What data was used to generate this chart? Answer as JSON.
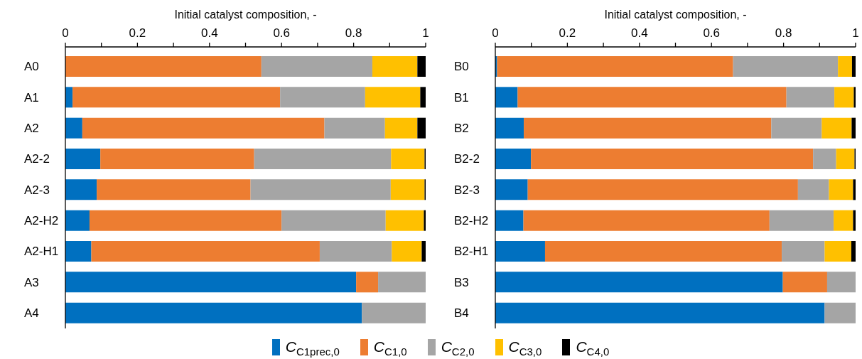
{
  "chart_data": [
    {
      "type": "bar",
      "orientation": "horizontal",
      "stacked": true,
      "xlabel": "Initial catalyst composition, -",
      "categories": [
        "A0",
        "A1",
        "A2",
        "A2-2",
        "A2-3",
        "A2-H2",
        "A2-H1",
        "A3",
        "A4"
      ],
      "xlim": [
        0,
        1
      ],
      "xticks": [
        0,
        {
          "value": 0.1,
          "label": null
        },
        0.2,
        {
          "value": 0.3,
          "label": null
        },
        0.4,
        {
          "value": 0.5,
          "label": null
        },
        0.6,
        {
          "value": 0.7,
          "label": null
        },
        0.8,
        {
          "value": 0.9,
          "label": null
        },
        1
      ],
      "legend": "bottom",
      "series": [
        {
          "name": "C$_{C1prec,0}$",
          "color": "#0070c0",
          "values": [
            0,
            0.02,
            0.047,
            0.097,
            0.087,
            0.067,
            0.072,
            0.807,
            0.823
          ]
        },
        {
          "name": "C$_{C1,0}$",
          "color": "#ed7d31",
          "values": [
            0.544,
            0.576,
            0.672,
            0.427,
            0.427,
            0.533,
            0.634,
            0.061,
            0
          ]
        },
        {
          "name": "C$_{C2,0}$",
          "color": "#a5a5a5",
          "values": [
            0.308,
            0.236,
            0.168,
            0.38,
            0.389,
            0.289,
            0.2,
            0.132,
            0.177
          ]
        },
        {
          "name": "C$_{C3,0}$",
          "color": "#ffc000",
          "values": [
            0.125,
            0.153,
            0.09,
            0.093,
            0.094,
            0.106,
            0.083,
            0,
            0
          ]
        },
        {
          "name": "C$_{C4,0}$",
          "color": "#000000",
          "values": [
            0.023,
            0.015,
            0.023,
            0.003,
            0.003,
            0.005,
            0.011,
            0,
            0
          ]
        }
      ]
    },
    {
      "type": "bar",
      "orientation": "horizontal",
      "stacked": true,
      "xlabel": "Initial catalyst composition, -",
      "categories": [
        "B0",
        "B1",
        "B2",
        "B2-2",
        "B2-3",
        "B2-H2",
        "B2-H1",
        "B3",
        "B4"
      ],
      "xlim": [
        0,
        1
      ],
      "xticks": [
        0,
        {
          "value": 0.1,
          "label": null
        },
        0.2,
        {
          "value": 0.3,
          "label": null
        },
        0.4,
        {
          "value": 0.5,
          "label": null
        },
        0.6,
        {
          "value": 0.7,
          "label": null
        },
        0.8,
        {
          "value": 0.9,
          "label": null
        },
        1
      ],
      "series": [
        {
          "color": "#0070c0",
          "values": [
            0.005,
            0.062,
            0.079,
            0.099,
            0.09,
            0.078,
            0.138,
            0.798,
            0.914
          ]
        },
        {
          "color": "#ed7d31",
          "values": [
            0.655,
            0.746,
            0.687,
            0.783,
            0.75,
            0.683,
            0.657,
            0.123,
            0
          ]
        },
        {
          "color": "#a5a5a5",
          "values": [
            0.291,
            0.133,
            0.14,
            0.064,
            0.086,
            0.178,
            0.119,
            0.079,
            0.086
          ]
        },
        {
          "color": "#ffc000",
          "values": [
            0.039,
            0.054,
            0.083,
            0.051,
            0.067,
            0.054,
            0.074,
            0,
            0
          ]
        },
        {
          "color": "#000000",
          "values": [
            0.01,
            0.005,
            0.011,
            0.003,
            0.007,
            0.007,
            0.012,
            0,
            0
          ]
        }
      ]
    }
  ]
}
